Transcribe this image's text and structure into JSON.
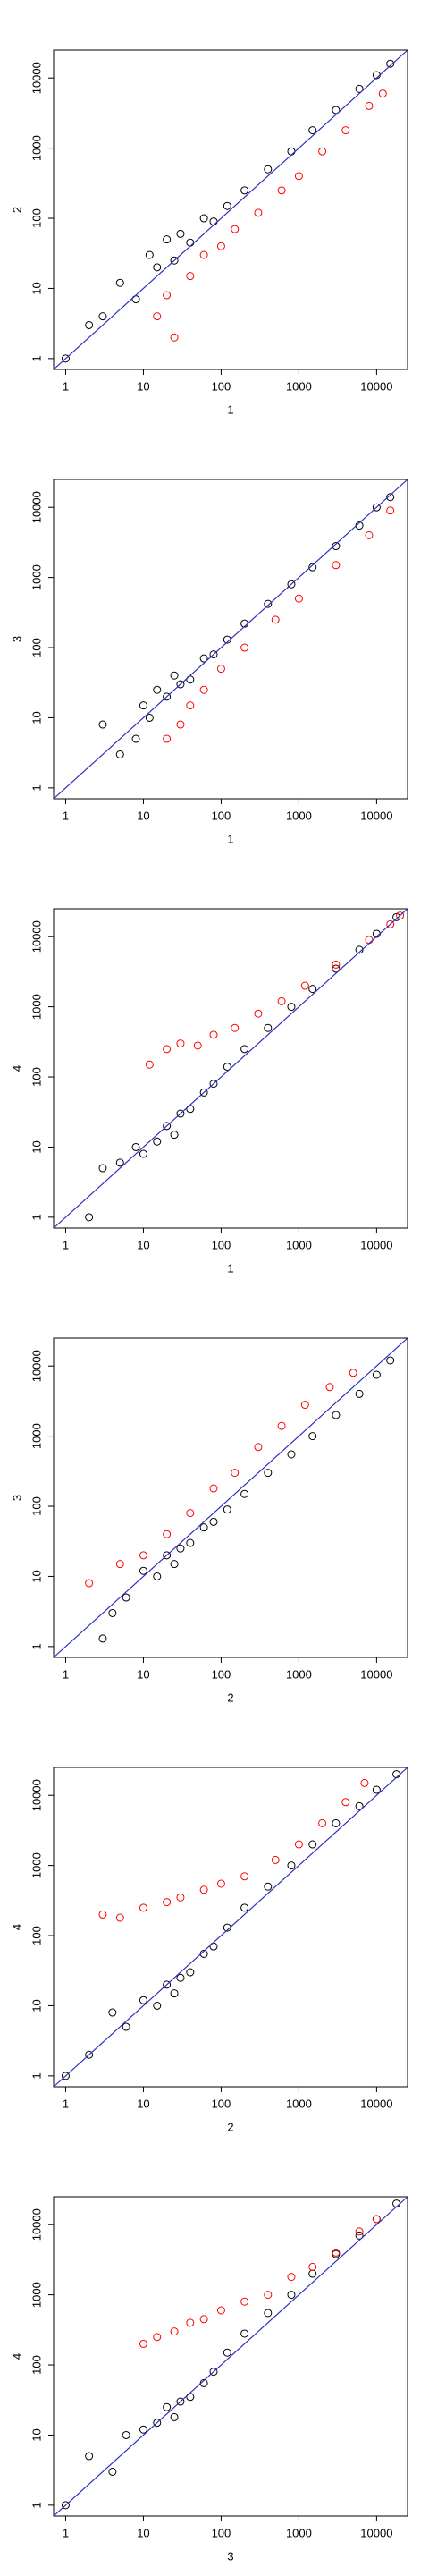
{
  "chart_data": [
    {
      "type": "scatter",
      "x_label": "1",
      "y_label": "2",
      "log_scale": true,
      "xlim": [
        0.7,
        25000
      ],
      "ylim": [
        0.7,
        25000
      ],
      "xticks": [
        1,
        10,
        100,
        1000,
        10000
      ],
      "yticks": [
        1,
        10,
        100,
        1000,
        10000
      ],
      "identity_line_color": "#3030c0",
      "series": [
        {
          "color": "#000000",
          "x": [
            1,
            2,
            3,
            5,
            8,
            12,
            15,
            20,
            25,
            30,
            40,
            60,
            80,
            120,
            200,
            400,
            800,
            1500,
            3000,
            6000,
            10000,
            15000
          ],
          "y": [
            1,
            3,
            4,
            12,
            7,
            30,
            20,
            50,
            25,
            60,
            45,
            100,
            90,
            150,
            250,
            500,
            900,
            1800,
            3500,
            7000,
            11000,
            16000
          ]
        },
        {
          "color": "#ff0000",
          "x": [
            15,
            20,
            25,
            40,
            60,
            100,
            150,
            300,
            600,
            1000,
            2000,
            4000,
            8000,
            12000
          ],
          "y": [
            4,
            8,
            2,
            15,
            30,
            40,
            70,
            120,
            250,
            400,
            900,
            1800,
            4000,
            6000
          ]
        }
      ]
    },
    {
      "type": "scatter",
      "x_label": "1",
      "y_label": "3",
      "log_scale": true,
      "xlim": [
        0.7,
        25000
      ],
      "ylim": [
        0.7,
        25000
      ],
      "xticks": [
        1,
        10,
        100,
        1000,
        10000
      ],
      "yticks": [
        1,
        10,
        100,
        1000,
        10000
      ],
      "identity_line_color": "#3030c0",
      "series": [
        {
          "color": "#000000",
          "x": [
            3,
            5,
            8,
            10,
            12,
            15,
            20,
            25,
            30,
            40,
            60,
            80,
            120,
            200,
            400,
            800,
            1500,
            3000,
            6000,
            10000,
            15000
          ],
          "y": [
            8,
            3,
            5,
            15,
            10,
            25,
            20,
            40,
            30,
            35,
            70,
            80,
            130,
            220,
            420,
            800,
            1400,
            2800,
            5500,
            10000,
            14000
          ]
        },
        {
          "color": "#ff0000",
          "x": [
            20,
            30,
            40,
            60,
            100,
            200,
            500,
            1000,
            3000,
            8000,
            15000
          ],
          "y": [
            5,
            8,
            15,
            25,
            50,
            100,
            250,
            500,
            1500,
            4000,
            9000
          ]
        }
      ]
    },
    {
      "type": "scatter",
      "x_label": "1",
      "y_label": "4",
      "log_scale": true,
      "xlim": [
        0.7,
        25000
      ],
      "ylim": [
        0.7,
        25000
      ],
      "xticks": [
        1,
        10,
        100,
        1000,
        10000
      ],
      "yticks": [
        1,
        10,
        100,
        1000,
        10000
      ],
      "identity_line_color": "#3030c0",
      "series": [
        {
          "color": "#000000",
          "x": [
            2,
            3,
            5,
            8,
            10,
            15,
            20,
            25,
            30,
            40,
            60,
            80,
            120,
            200,
            400,
            800,
            1500,
            3000,
            6000,
            10000,
            18000
          ],
          "y": [
            1,
            5,
            6,
            10,
            8,
            12,
            20,
            15,
            30,
            35,
            60,
            80,
            140,
            250,
            500,
            1000,
            1800,
            3500,
            6500,
            11000,
            19000
          ]
        },
        {
          "color": "#ff0000",
          "x": [
            12,
            20,
            30,
            50,
            80,
            150,
            300,
            600,
            1200,
            3000,
            8000,
            15000,
            20000
          ],
          "y": [
            150,
            250,
            300,
            280,
            400,
            500,
            800,
            1200,
            2000,
            4000,
            9000,
            15000,
            20000
          ]
        }
      ]
    },
    {
      "type": "scatter",
      "x_label": "2",
      "y_label": "3",
      "log_scale": true,
      "xlim": [
        0.7,
        25000
      ],
      "ylim": [
        0.7,
        25000
      ],
      "xticks": [
        1,
        10,
        100,
        1000,
        10000
      ],
      "yticks": [
        1,
        10,
        100,
        1000,
        10000
      ],
      "identity_line_color": "#3030c0",
      "series": [
        {
          "color": "#000000",
          "x": [
            3,
            4,
            6,
            10,
            15,
            20,
            25,
            30,
            40,
            60,
            80,
            120,
            200,
            400,
            800,
            1500,
            3000,
            6000,
            10000,
            15000
          ],
          "y": [
            1.3,
            3,
            5,
            12,
            10,
            20,
            15,
            25,
            30,
            50,
            60,
            90,
            150,
            300,
            550,
            1000,
            2000,
            4000,
            7500,
            12000
          ]
        },
        {
          "color": "#ff0000",
          "x": [
            2,
            5,
            10,
            20,
            40,
            80,
            150,
            300,
            600,
            1200,
            2500,
            5000
          ],
          "y": [
            8,
            15,
            20,
            40,
            80,
            180,
            300,
            700,
            1400,
            2800,
            5000,
            8000
          ]
        }
      ]
    },
    {
      "type": "scatter",
      "x_label": "2",
      "y_label": "4",
      "log_scale": true,
      "xlim": [
        0.7,
        25000
      ],
      "ylim": [
        0.7,
        25000
      ],
      "xticks": [
        1,
        10,
        100,
        1000,
        10000
      ],
      "yticks": [
        1,
        10,
        100,
        1000,
        10000
      ],
      "identity_line_color": "#3030c0",
      "series": [
        {
          "color": "#000000",
          "x": [
            1,
            2,
            4,
            6,
            10,
            15,
            20,
            25,
            30,
            40,
            60,
            80,
            120,
            200,
            400,
            800,
            1500,
            3000,
            6000,
            10000,
            18000
          ],
          "y": [
            1,
            2,
            8,
            5,
            12,
            10,
            20,
            15,
            25,
            30,
            55,
            70,
            130,
            250,
            500,
            1000,
            2000,
            4000,
            7000,
            12000,
            20000
          ]
        },
        {
          "color": "#ff0000",
          "x": [
            3,
            5,
            10,
            20,
            30,
            60,
            100,
            200,
            500,
            1000,
            2000,
            4000,
            7000
          ],
          "y": [
            200,
            180,
            250,
            300,
            350,
            450,
            550,
            700,
            1200,
            2000,
            4000,
            8000,
            15000
          ]
        }
      ]
    },
    {
      "type": "scatter",
      "x_label": "3",
      "y_label": "4",
      "log_scale": true,
      "xlim": [
        0.7,
        25000
      ],
      "ylim": [
        0.7,
        25000
      ],
      "xticks": [
        1,
        10,
        100,
        1000,
        10000
      ],
      "yticks": [
        1,
        10,
        100,
        1000,
        10000
      ],
      "identity_line_color": "#3030c0",
      "series": [
        {
          "color": "#000000",
          "x": [
            1,
            2,
            4,
            6,
            10,
            15,
            20,
            25,
            30,
            40,
            60,
            80,
            120,
            200,
            400,
            800,
            1500,
            3000,
            6000,
            10000,
            18000
          ],
          "y": [
            1,
            5,
            3,
            10,
            12,
            15,
            25,
            18,
            30,
            35,
            55,
            80,
            150,
            280,
            550,
            1000,
            2000,
            3800,
            7000,
            12000,
            20000
          ]
        },
        {
          "color": "#ff0000",
          "x": [
            10,
            15,
            25,
            40,
            60,
            100,
            200,
            400,
            800,
            1500,
            3000,
            6000,
            10000
          ],
          "y": [
            200,
            250,
            300,
            400,
            450,
            600,
            800,
            1000,
            1800,
            2500,
            4000,
            8000,
            12000
          ]
        }
      ]
    }
  ]
}
